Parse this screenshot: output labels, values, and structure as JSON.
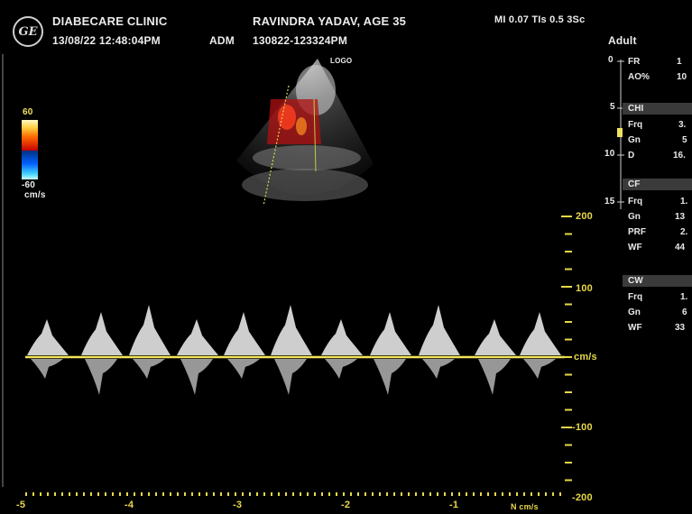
{
  "header": {
    "clinic": "DIABECARE CLINIC",
    "datetime": "13/08/22 12:48:04PM",
    "mode": "ADM",
    "patient": "RAVINDRA YADAV, AGE 35",
    "exam_id": "130822-123324PM",
    "indices": "MI 0.07  TIs 0.5  3Sc",
    "preset": "Adult",
    "logo_text": "GE"
  },
  "color_scale": {
    "max": "60",
    "min": "-60",
    "unit": "cm/s"
  },
  "probe_label": "LOGO",
  "depth_scale": [
    "0",
    "5",
    "10",
    "15"
  ],
  "doppler": {
    "velocity_ticks": [
      "200",
      "100",
      "cm/s",
      "-100",
      "-200"
    ],
    "time_ticks": [
      "-5",
      "-4",
      "-3",
      "-2",
      "-1"
    ],
    "speed_label": "N cm/s"
  },
  "side_panel": {
    "rows_top": [
      {
        "label": "FR",
        "value": "1"
      },
      {
        "label": "AO%",
        "value": "10"
      }
    ],
    "sections": [
      {
        "header": "CHI",
        "rows": [
          {
            "label": "Frq",
            "value": "3."
          },
          {
            "label": "Gn",
            "value": "5"
          },
          {
            "label": "D",
            "value": "16."
          }
        ]
      },
      {
        "header": "CF",
        "rows": [
          {
            "label": "Frq",
            "value": "1."
          },
          {
            "label": "Gn",
            "value": "13"
          },
          {
            "label": "PRF",
            "value": "2."
          },
          {
            "label": "WF",
            "value": "44"
          }
        ]
      },
      {
        "header": "CW",
        "rows": [
          {
            "label": "Frq",
            "value": "1."
          },
          {
            "label": "Gn",
            "value": "6"
          },
          {
            "label": "WF",
            "value": "33"
          }
        ]
      }
    ]
  },
  "colors": {
    "baseline": "#f2e55a",
    "scale_marks": "#e8d848",
    "panel_header": "#3a3a3a"
  }
}
